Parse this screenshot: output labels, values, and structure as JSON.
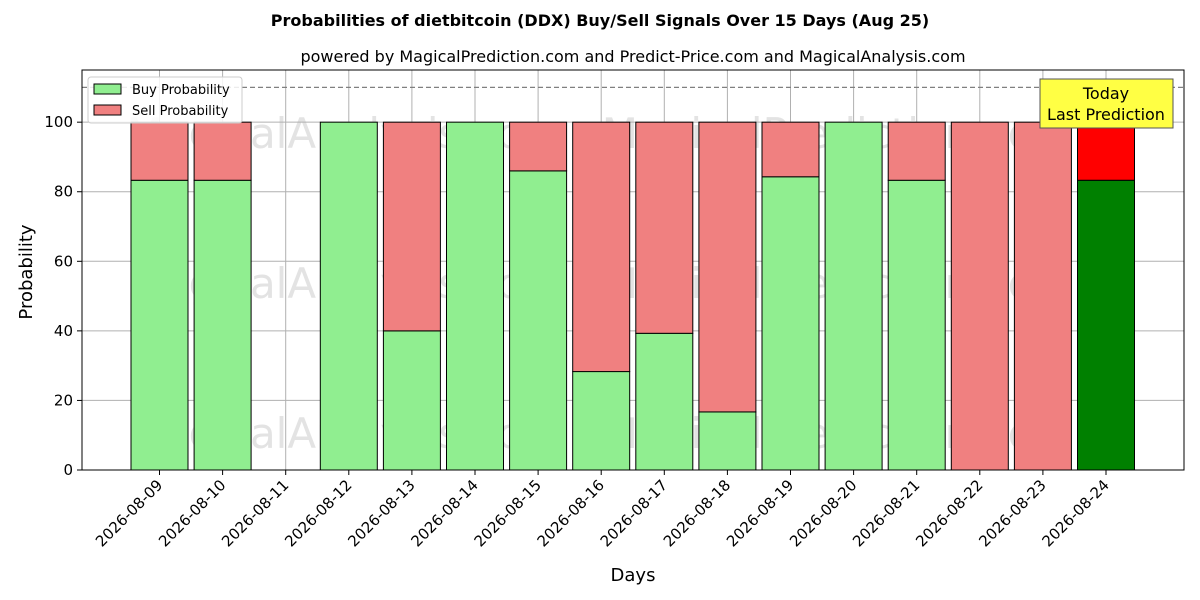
{
  "chart_data": {
    "type": "bar",
    "stacked": true,
    "title": "Probabilities of dietbitcoin (DDX) Buy/Sell Signals Over 15 Days (Aug 25)",
    "subtitle": "powered by MagicalPrediction.com and Predict-Price.com and MagicalAnalysis.com",
    "xlabel": "Days",
    "ylabel": "Probability",
    "ylim": [
      0,
      115
    ],
    "yticks": [
      0,
      20,
      40,
      60,
      80,
      100
    ],
    "reference_line": 110,
    "grid": true,
    "legend_position": "top-left",
    "categories": [
      "2026-08-09",
      "2026-08-10",
      "2026-08-11",
      "2026-08-12",
      "2026-08-13",
      "2026-08-14",
      "2026-08-15",
      "2026-08-16",
      "2026-08-17",
      "2026-08-18",
      "2026-08-19",
      "2026-08-20",
      "2026-08-21",
      "2026-08-22",
      "2026-08-23",
      "2026-08-24"
    ],
    "series": [
      {
        "name": "Buy Probability",
        "color": "#90ee90",
        "values": [
          83.3,
          83.3,
          null,
          100,
          40,
          100,
          86,
          28.3,
          39.3,
          16.7,
          84.3,
          100,
          83.3,
          0,
          0,
          83.3
        ]
      },
      {
        "name": "Sell Probability",
        "color": "#f08080",
        "values": [
          16.7,
          16.7,
          null,
          0,
          60,
          0,
          14,
          71.7,
          60.7,
          83.3,
          15.7,
          0,
          16.7,
          100,
          100,
          16.7
        ]
      }
    ],
    "highlight": {
      "category": "2026-08-24",
      "buy_color": "#008000",
      "sell_color": "#ff0000",
      "annotation": [
        "Today",
        "Last Prediction"
      ],
      "annotation_bg": "#ffff44"
    },
    "watermarks": [
      "MagicalAnalysis.com",
      "MagicalPrediction.com"
    ]
  }
}
